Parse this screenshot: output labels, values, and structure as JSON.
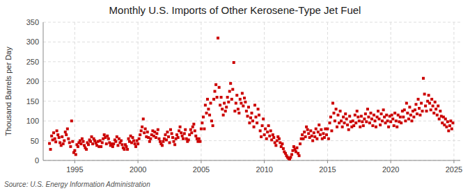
{
  "chart_data": {
    "type": "scatter",
    "title": "Monthly U.S. Imports of Other Kerosene-Type Jet Fuel",
    "y_label": "Thousand Barrels per Day",
    "source": "Source: U.S. Energy Information Administration",
    "color": "#cc0000",
    "marker": "square",
    "grid": true,
    "xlim": [
      1992.5,
      2025.5
    ],
    "xticks": [
      1995,
      2000,
      2005,
      2010,
      2015,
      2020,
      2025
    ],
    "ylim": [
      0,
      350
    ],
    "yticks": [
      0,
      50,
      100,
      150,
      200,
      250,
      300,
      350
    ],
    "x": [
      1993.0,
      1993.08,
      1993.17,
      1993.25,
      1993.33,
      1993.42,
      1993.5,
      1993.58,
      1993.67,
      1993.75,
      1993.83,
      1993.92,
      1994.0,
      1994.08,
      1994.17,
      1994.25,
      1994.33,
      1994.42,
      1994.5,
      1994.58,
      1994.67,
      1994.75,
      1994.83,
      1994.92,
      1995.0,
      1995.08,
      1995.17,
      1995.25,
      1995.33,
      1995.42,
      1995.5,
      1995.58,
      1995.67,
      1995.75,
      1995.83,
      1995.92,
      1996.0,
      1996.08,
      1996.17,
      1996.25,
      1996.33,
      1996.42,
      1996.5,
      1996.58,
      1996.67,
      1996.75,
      1996.83,
      1996.92,
      1997.0,
      1997.08,
      1997.17,
      1997.25,
      1997.33,
      1997.42,
      1997.5,
      1997.58,
      1997.67,
      1997.75,
      1997.83,
      1997.92,
      1998.0,
      1998.08,
      1998.17,
      1998.25,
      1998.33,
      1998.42,
      1998.5,
      1998.58,
      1998.67,
      1998.75,
      1998.83,
      1998.92,
      1999.0,
      1999.08,
      1999.17,
      1999.25,
      1999.33,
      1999.42,
      1999.5,
      1999.58,
      1999.67,
      1999.75,
      1999.83,
      1999.92,
      2000.0,
      2000.08,
      2000.17,
      2000.25,
      2000.33,
      2000.42,
      2000.5,
      2000.58,
      2000.67,
      2000.75,
      2000.83,
      2000.92,
      2001.0,
      2001.08,
      2001.17,
      2001.25,
      2001.33,
      2001.42,
      2001.5,
      2001.58,
      2001.67,
      2001.75,
      2001.83,
      2001.92,
      2002.0,
      2002.08,
      2002.17,
      2002.25,
      2002.33,
      2002.42,
      2002.5,
      2002.58,
      2002.67,
      2002.75,
      2002.83,
      2002.92,
      2003.0,
      2003.08,
      2003.17,
      2003.25,
      2003.33,
      2003.42,
      2003.5,
      2003.58,
      2003.67,
      2003.75,
      2003.83,
      2003.92,
      2004.0,
      2004.08,
      2004.17,
      2004.25,
      2004.33,
      2004.42,
      2004.5,
      2004.58,
      2004.67,
      2004.75,
      2004.83,
      2004.92,
      2005.0,
      2005.08,
      2005.17,
      2005.25,
      2005.33,
      2005.42,
      2005.5,
      2005.58,
      2005.67,
      2005.75,
      2005.83,
      2005.92,
      2006.0,
      2006.08,
      2006.17,
      2006.25,
      2006.33,
      2006.42,
      2006.5,
      2006.58,
      2006.67,
      2006.75,
      2006.83,
      2006.92,
      2007.0,
      2007.08,
      2007.17,
      2007.25,
      2007.33,
      2007.42,
      2007.5,
      2007.58,
      2007.67,
      2007.75,
      2007.83,
      2007.92,
      2008.0,
      2008.08,
      2008.17,
      2008.25,
      2008.33,
      2008.42,
      2008.5,
      2008.58,
      2008.67,
      2008.75,
      2008.83,
      2008.92,
      2009.0,
      2009.08,
      2009.17,
      2009.25,
      2009.33,
      2009.42,
      2009.5,
      2009.58,
      2009.67,
      2009.75,
      2009.83,
      2009.92,
      2010.0,
      2010.08,
      2010.17,
      2010.25,
      2010.33,
      2010.42,
      2010.5,
      2010.58,
      2010.67,
      2010.75,
      2010.83,
      2010.92,
      2011.0,
      2011.08,
      2011.17,
      2011.25,
      2011.33,
      2011.42,
      2011.5,
      2011.58,
      2011.67,
      2011.75,
      2011.83,
      2011.92,
      2012.0,
      2012.08,
      2012.17,
      2012.25,
      2012.33,
      2012.42,
      2012.5,
      2012.58,
      2012.67,
      2012.75,
      2012.83,
      2012.92,
      2013.0,
      2013.08,
      2013.17,
      2013.25,
      2013.33,
      2013.42,
      2013.5,
      2013.58,
      2013.67,
      2013.75,
      2013.83,
      2013.92,
      2014.0,
      2014.08,
      2014.17,
      2014.25,
      2014.33,
      2014.42,
      2014.5,
      2014.58,
      2014.67,
      2014.75,
      2014.83,
      2014.92,
      2015.0,
      2015.08,
      2015.17,
      2015.25,
      2015.33,
      2015.42,
      2015.5,
      2015.58,
      2015.67,
      2015.75,
      2015.83,
      2015.92,
      2016.0,
      2016.08,
      2016.17,
      2016.25,
      2016.33,
      2016.42,
      2016.5,
      2016.58,
      2016.67,
      2016.75,
      2016.83,
      2016.92,
      2017.0,
      2017.08,
      2017.17,
      2017.25,
      2017.33,
      2017.42,
      2017.5,
      2017.58,
      2017.67,
      2017.75,
      2017.83,
      2017.92,
      2018.0,
      2018.08,
      2018.17,
      2018.25,
      2018.33,
      2018.42,
      2018.5,
      2018.58,
      2018.67,
      2018.75,
      2018.83,
      2018.92,
      2019.0,
      2019.08,
      2019.17,
      2019.25,
      2019.33,
      2019.42,
      2019.5,
      2019.58,
      2019.67,
      2019.75,
      2019.83,
      2019.92,
      2020.0,
      2020.08,
      2020.17,
      2020.25,
      2020.33,
      2020.42,
      2020.5,
      2020.58,
      2020.67,
      2020.75,
      2020.83,
      2020.92,
      2021.0,
      2021.08,
      2021.17,
      2021.25,
      2021.33,
      2021.42,
      2021.5,
      2021.58,
      2021.67,
      2021.75,
      2021.83,
      2021.92,
      2022.0,
      2022.08,
      2022.17,
      2022.25,
      2022.33,
      2022.42,
      2022.5,
      2022.58,
      2022.67,
      2022.75,
      2022.83,
      2022.92,
      2023.0,
      2023.08,
      2023.17,
      2023.25,
      2023.33,
      2023.42,
      2023.5,
      2023.58,
      2023.67,
      2023.75,
      2023.83,
      2023.92,
      2024.0,
      2024.08,
      2024.17,
      2024.25,
      2024.33,
      2024.42,
      2024.5,
      2024.58,
      2024.67,
      2024.75,
      2024.83,
      2024.92
    ],
    "values": [
      43,
      28,
      62,
      52,
      70,
      55,
      47,
      75,
      65,
      58,
      45,
      38,
      60,
      42,
      50,
      72,
      65,
      80,
      55,
      45,
      35,
      100,
      48,
      20,
      25,
      15,
      40,
      35,
      45,
      50,
      42,
      55,
      48,
      38,
      32,
      28,
      45,
      40,
      52,
      48,
      60,
      42,
      55,
      50,
      44,
      38,
      48,
      35,
      50,
      35,
      45,
      55,
      65,
      58,
      42,
      62,
      55,
      45,
      38,
      42,
      35,
      42,
      52,
      48,
      60,
      38,
      55,
      45,
      50,
      40,
      32,
      28,
      40,
      35,
      28,
      55,
      48,
      62,
      45,
      58,
      50,
      42,
      35,
      50,
      42,
      55,
      65,
      75,
      85,
      105,
      70,
      80,
      60,
      72,
      58,
      48,
      55,
      65,
      75,
      62,
      72,
      58,
      68,
      78,
      55,
      48,
      42,
      38,
      48,
      55,
      65,
      52,
      72,
      60,
      45,
      78,
      68,
      58,
      48,
      40,
      55,
      65,
      58,
      75,
      85,
      70,
      62,
      55,
      68,
      78,
      55,
      48,
      52,
      65,
      78,
      70,
      85,
      92,
      75,
      62,
      55,
      48,
      55,
      48,
      80,
      95,
      110,
      80,
      140,
      120,
      155,
      130,
      115,
      145,
      100,
      88,
      155,
      175,
      192,
      160,
      310,
      185,
      140,
      160,
      130,
      115,
      145,
      125,
      135,
      160,
      148,
      175,
      195,
      155,
      180,
      248,
      125,
      145,
      165,
      130,
      120,
      155,
      145,
      170,
      138,
      158,
      148,
      125,
      112,
      135,
      95,
      108,
      120,
      100,
      85,
      140,
      110,
      95,
      130,
      115,
      75,
      60,
      88,
      105,
      65,
      80,
      55,
      72,
      88,
      62,
      75,
      52,
      65,
      58,
      45,
      38,
      50,
      60,
      55,
      45,
      35,
      42,
      30,
      22,
      18,
      12,
      8,
      5,
      3,
      8,
      15,
      25,
      35,
      28,
      22,
      32,
      18,
      12,
      42,
      55,
      65,
      55,
      72,
      60,
      85,
      78,
      68,
      58,
      75,
      62,
      50,
      70,
      60,
      80,
      55,
      72,
      90,
      65,
      78,
      55,
      68,
      58,
      80,
      65,
      80,
      55,
      95,
      110,
      75,
      145,
      120,
      100,
      130,
      85,
      115,
      95,
      125,
      100,
      85,
      110,
      95,
      118,
      105,
      90,
      78,
      112,
      98,
      85,
      100,
      88,
      115,
      95,
      125,
      110,
      100,
      85,
      112,
      98,
      88,
      105,
      118,
      98,
      130,
      110,
      95,
      120,
      105,
      88,
      115,
      100,
      85,
      110,
      125,
      105,
      90,
      118,
      100,
      128,
      110,
      95,
      115,
      100,
      85,
      112,
      98,
      115,
      105,
      88,
      120,
      100,
      85,
      115,
      98,
      110,
      95,
      125,
      110,
      128,
      100,
      145,
      120,
      105,
      135,
      115,
      100,
      125,
      110,
      128,
      142,
      118,
      155,
      132,
      115,
      145,
      125,
      208,
      168,
      138,
      125,
      150,
      165,
      145,
      128,
      155,
      138,
      120,
      148,
      130,
      115,
      138,
      105,
      125,
      112,
      95,
      110,
      90,
      105,
      85,
      98,
      75,
      88,
      100,
      80,
      95
    ]
  }
}
